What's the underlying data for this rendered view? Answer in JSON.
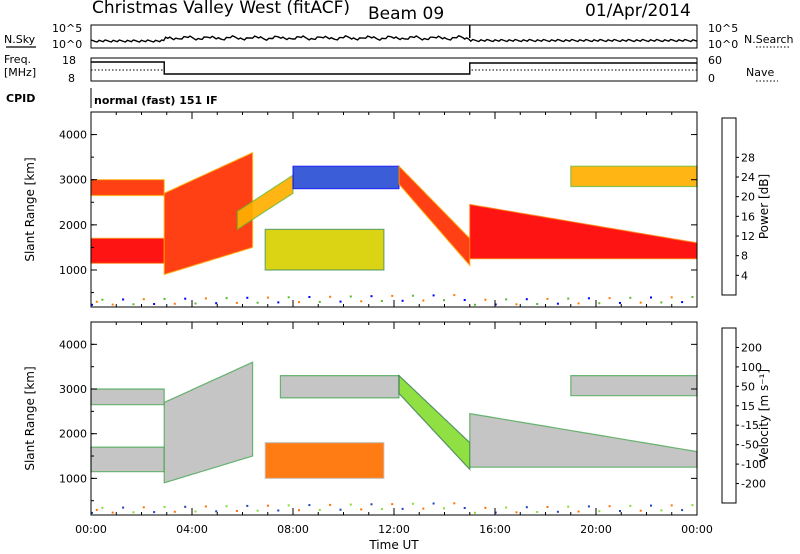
{
  "header": {
    "station": "Christmas Valley West (fitACF)",
    "beam": "Beam 09",
    "date": "01/Apr/2014"
  },
  "mode_label": "normal (fast) 151 IF",
  "side_labels": {
    "nsky": "N.Sky",
    "freq": "Freq.",
    "freq_unit": "[MHz]",
    "cpid": "CPID",
    "nsearch": "N.Search",
    "nave": "Nave"
  },
  "top_ticks": {
    "nsky_left": [
      "10^5",
      "10^0"
    ],
    "nsky_right": [
      "10^5",
      "10^0"
    ],
    "freq_left": [
      "18",
      "8"
    ],
    "nave_right": [
      "60",
      "0"
    ]
  },
  "colors": {
    "power": [
      "#0000ff",
      "#2a4fd4",
      "#3a8c5c",
      "#5ab832",
      "#d8d000",
      "#ffb000",
      "#ff7a00",
      "#ff3000",
      "#ff0000"
    ],
    "velocity": [
      "#2040c0",
      "#2a6a55",
      "#35a040",
      "#88dd33",
      "#c0c0c0",
      "#ffa000",
      "#ff7000",
      "#ff3000",
      "#ee0000"
    ]
  },
  "chart_data": [
    {
      "type": "heatmap",
      "name_hint": "power",
      "xlabel": "",
      "ylabel": "Slant Range [km]",
      "xlim": [
        0,
        24
      ],
      "ylim": [
        180,
        4500
      ],
      "yticks": [
        "1000",
        "2000",
        "3000",
        "4000"
      ],
      "colorbar_label": "Power [dB]",
      "colorbar_ticks": [
        "4",
        "8",
        "12",
        "16",
        "20",
        "24",
        "28"
      ],
      "bands": [
        {
          "from": 0.0,
          "to": 2.9,
          "low": 1150,
          "high": 1700,
          "level": 8
        },
        {
          "from": 0.0,
          "to": 2.9,
          "low": 2650,
          "high": 3000,
          "level": 7
        },
        {
          "from": 2.9,
          "to": 6.4,
          "low": 900,
          "high": 2700,
          "low2": 1500,
          "high2": 3600,
          "level": 7
        },
        {
          "from": 5.8,
          "to": 8.0,
          "low": 1900,
          "high": 2300,
          "low2": 2700,
          "high2": 3100,
          "level": 5
        },
        {
          "from": 8.0,
          "to": 12.2,
          "low": 2800,
          "high": 3300,
          "level": 1
        },
        {
          "from": 6.9,
          "to": 11.6,
          "low": 1000,
          "high": 1900,
          "level": 4
        },
        {
          "from": 12.2,
          "to": 15.0,
          "low": 2900,
          "high": 3300,
          "low2": 1100,
          "high2": 1700,
          "level": 7
        },
        {
          "from": 15.0,
          "to": 24.0,
          "low": 1250,
          "high": 2450,
          "low2": 1250,
          "high2": 1600,
          "level": 8
        },
        {
          "from": 19.0,
          "to": 24.0,
          "low": 2850,
          "high": 3300,
          "level": 5
        }
      ]
    },
    {
      "type": "heatmap",
      "name_hint": "velocity",
      "xlabel": "Time UT",
      "ylabel": "Slant Range [km]",
      "xlim": [
        0,
        24
      ],
      "ylim": [
        180,
        4500
      ],
      "xticks": [
        "00:00",
        "04:00",
        "08:00",
        "12:00",
        "16:00",
        "20:00",
        "00:00"
      ],
      "yticks": [
        "1000",
        "2000",
        "3000",
        "4000"
      ],
      "colorbar_label": "Velocity [m s⁻¹]",
      "colorbar_ticks": [
        "200",
        "100",
        "50",
        "15",
        "-15",
        "-50",
        "-100",
        "-200"
      ],
      "bands": [
        {
          "from": 0.0,
          "to": 2.9,
          "low": 1150,
          "high": 1700,
          "level": 4
        },
        {
          "from": 0.0,
          "to": 2.9,
          "low": 2650,
          "high": 3000,
          "level": 4
        },
        {
          "from": 2.9,
          "to": 6.4,
          "low": 900,
          "high": 2700,
          "low2": 1500,
          "high2": 3600,
          "level": 4
        },
        {
          "from": 6.9,
          "to": 11.6,
          "low": 1000,
          "high": 1800,
          "level": 6
        },
        {
          "from": 7.5,
          "to": 12.2,
          "low": 2800,
          "high": 3300,
          "level": 4
        },
        {
          "from": 12.2,
          "to": 15.0,
          "low": 2900,
          "high": 3300,
          "low2": 1200,
          "high2": 1800,
          "level": 3
        },
        {
          "from": 15.0,
          "to": 24.0,
          "low": 1250,
          "high": 2450,
          "low2": 1250,
          "high2": 1600,
          "level": 4
        },
        {
          "from": 19.0,
          "to": 24.0,
          "low": 2850,
          "high": 3300,
          "level": 4
        }
      ]
    }
  ]
}
